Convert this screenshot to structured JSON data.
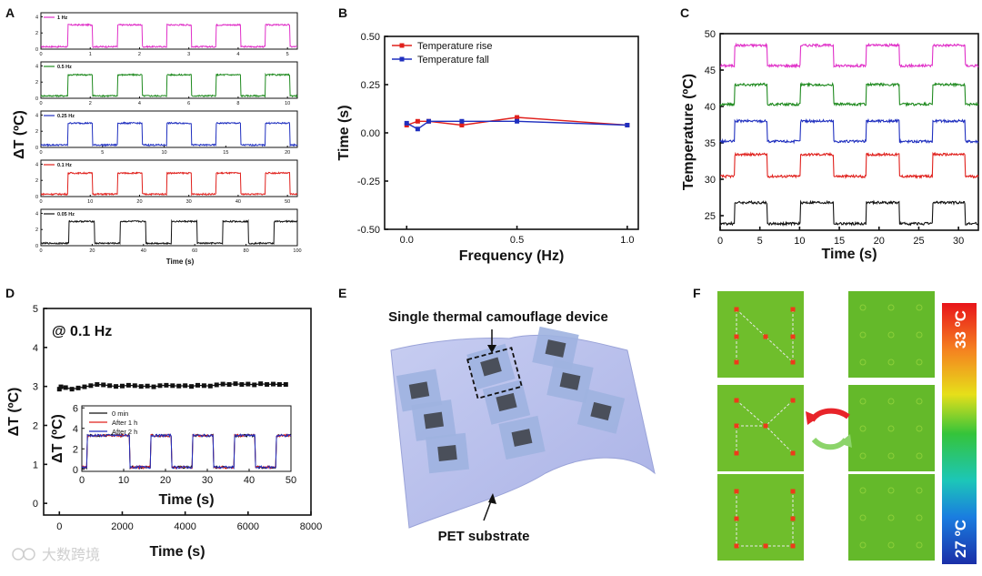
{
  "panel_labels": {
    "a": "A",
    "b": "B",
    "c": "C",
    "d": "D",
    "e": "E",
    "f": "F"
  },
  "watermark": "大数跨境",
  "panel_a": {
    "ylabel": "ΔT (ºC)",
    "xlabel": "Time (s)"
  },
  "panel_e": {
    "device_label": "Single thermal camouflage device",
    "substrate_label": "PET substrate"
  },
  "panel_f": {
    "scale_high": "33 ºC",
    "scale_low": "27 ºC"
  },
  "colors": {
    "magenta": "#e030c8",
    "green": "#1f8a1f",
    "blue": "#1f2fbf",
    "red": "#e0201c",
    "black": "#111111"
  },
  "chart_data": [
    {
      "id": "A",
      "type": "line",
      "ylabel": "ΔT (ºC)",
      "xlabel": "Time (s)",
      "subplots": [
        {
          "label": "1 Hz",
          "color": "#e030c8",
          "xlim": [
            0,
            5.2
          ],
          "xticks": [
            "0",
            "1",
            "2",
            "3",
            "4",
            "5"
          ],
          "yticks": [
            "0",
            "2",
            "4"
          ],
          "ylim": [
            0,
            4.5
          ],
          "period_s": 1,
          "high": 3.0,
          "low": 0.3
        },
        {
          "label": "0.5 Hz",
          "color": "#1f8a1f",
          "xlim": [
            0,
            10.4
          ],
          "xticks": [
            "0",
            "2",
            "4",
            "6",
            "8",
            "10"
          ],
          "yticks": [
            "0",
            "2",
            "4"
          ],
          "ylim": [
            0,
            4.5
          ],
          "period_s": 2,
          "high": 2.9,
          "low": 0.3
        },
        {
          "label": "0.25 Hz",
          "color": "#1f2fbf",
          "xlim": [
            0,
            20.8
          ],
          "xticks": [
            "0",
            "5",
            "10",
            "15",
            "20"
          ],
          "yticks": [
            "0",
            "2",
            "4"
          ],
          "ylim": [
            0,
            4.5
          ],
          "period_s": 4,
          "high": 3.0,
          "low": 0.3
        },
        {
          "label": "0.1 Hz",
          "color": "#e0201c",
          "xlim": [
            0,
            52
          ],
          "xticks": [
            "0",
            "10",
            "20",
            "30",
            "40",
            "50"
          ],
          "yticks": [
            "0",
            "2",
            "4"
          ],
          "ylim": [
            0,
            4.5
          ],
          "period_s": 10,
          "high": 2.9,
          "low": 0.3
        },
        {
          "label": "0.05 Hz",
          "color": "#111111",
          "xlim": [
            0,
            100
          ],
          "xticks": [
            "0",
            "20",
            "40",
            "60",
            "80",
            "100"
          ],
          "yticks": [
            "0",
            "2",
            "4"
          ],
          "ylim": [
            0,
            4.5
          ],
          "period_s": 20,
          "high": 3.0,
          "low": 0.3
        }
      ]
    },
    {
      "id": "B",
      "type": "line",
      "xlabel": "Frequency (Hz)",
      "ylabel": "Time (s)",
      "xlim": [
        -0.1,
        1.05
      ],
      "ylim": [
        -0.5,
        0.5
      ],
      "xticks": [
        {
          "v": 0,
          "t": "0.0"
        },
        {
          "v": 0.5,
          "t": "0.5"
        },
        {
          "v": 1.0,
          "t": "1.0"
        }
      ],
      "yticks": [
        {
          "v": 0.5,
          "t": "0.50"
        },
        {
          "v": 0.25,
          "t": "0.25"
        },
        {
          "v": 0,
          "t": "0.00"
        },
        {
          "v": -0.25,
          "t": "-0.25"
        },
        {
          "v": -0.5,
          "t": "-0.50"
        }
      ],
      "legend_position": "top-left",
      "series": [
        {
          "name": "Temperature rise",
          "color": "#e0201c",
          "x": [
            0.0,
            0.05,
            0.1,
            0.25,
            0.5,
            1.0
          ],
          "y": [
            0.04,
            0.06,
            0.06,
            0.04,
            0.08,
            0.04
          ]
        },
        {
          "name": "Temperature fall",
          "color": "#1f2fbf",
          "x": [
            0.0,
            0.05,
            0.1,
            0.25,
            0.5,
            1.0
          ],
          "y": [
            0.05,
            0.02,
            0.06,
            0.06,
            0.06,
            0.04
          ]
        }
      ]
    },
    {
      "id": "C",
      "type": "line",
      "xlabel": "Time (s)",
      "ylabel": "Temperature (ºC)",
      "xlim": [
        0,
        32.5
      ],
      "ylim": [
        23,
        50
      ],
      "xticks": [
        {
          "v": 0,
          "t": "0"
        },
        {
          "v": 5,
          "t": "5"
        },
        {
          "v": 10,
          "t": "10"
        },
        {
          "v": 15,
          "t": "15"
        },
        {
          "v": 20,
          "t": "20"
        },
        {
          "v": 25,
          "t": "25"
        },
        {
          "v": 30,
          "t": "30"
        }
      ],
      "yticks": [
        {
          "v": 25,
          "t": "25"
        },
        {
          "v": 30,
          "t": "30"
        },
        {
          "v": 35,
          "t": "35"
        },
        {
          "v": 40,
          "t": "40"
        },
        {
          "v": 45,
          "t": "45"
        },
        {
          "v": 50,
          "t": "50"
        }
      ],
      "period_s": 8.3,
      "phase_s": 1.8,
      "series": [
        {
          "color": "#e030c8",
          "low": 45.6,
          "high": 48.4
        },
        {
          "color": "#1f8a1f",
          "low": 40.3,
          "high": 43.0
        },
        {
          "color": "#1f2fbf",
          "low": 35.2,
          "high": 38.0
        },
        {
          "color": "#e0201c",
          "low": 30.4,
          "high": 33.4
        },
        {
          "color": "#111111",
          "low": 23.9,
          "high": 26.8
        }
      ]
    },
    {
      "id": "D",
      "type": "scatter",
      "annotation": "@ 0.1 Hz",
      "xlabel": "Time (s)",
      "ylabel": "ΔT (ºC)",
      "xlim": [
        -500,
        8000
      ],
      "ylim": [
        -0.3,
        5
      ],
      "xticks": [
        {
          "v": 0,
          "t": "0"
        },
        {
          "v": 2000,
          "t": "2000"
        },
        {
          "v": 4000,
          "t": "4000"
        },
        {
          "v": 6000,
          "t": "6000"
        },
        {
          "v": 8000,
          "t": "8000"
        }
      ],
      "yticks": [
        {
          "v": 0,
          "t": "0"
        },
        {
          "v": 1,
          "t": "1"
        },
        {
          "v": 2,
          "t": "2"
        },
        {
          "v": 3,
          "t": "3"
        },
        {
          "v": 4,
          "t": "4"
        },
        {
          "v": 5,
          "t": "5"
        }
      ],
      "series": [
        {
          "color": "#111111",
          "x": [
            0,
            50,
            200,
            400,
            600,
            800,
            1000,
            1200,
            1400,
            1600,
            1800,
            2000,
            2200,
            2400,
            2600,
            2800,
            3000,
            3200,
            3400,
            3600,
            3800,
            4000,
            4200,
            4400,
            4600,
            4800,
            5000,
            5200,
            5400,
            5600,
            5800,
            6000,
            6200,
            6400,
            6600,
            6800,
            7000,
            7200
          ],
          "y": [
            2.93,
            2.99,
            2.97,
            2.93,
            2.96,
            2.99,
            3.02,
            3.05,
            3.04,
            3.02,
            3.0,
            3.01,
            3.03,
            3.02,
            3.0,
            3.01,
            2.99,
            3.02,
            3.03,
            3.02,
            3.01,
            3.02,
            3.0,
            3.03,
            3.02,
            3.01,
            3.04,
            3.06,
            3.05,
            3.07,
            3.05,
            3.06,
            3.04,
            3.07,
            3.05,
            3.06,
            3.05,
            3.05
          ]
        }
      ],
      "inset": {
        "xlabel": "Time (s)",
        "ylabel": "ΔT (ºC)",
        "xlim": [
          0,
          50
        ],
        "ylim": [
          -0.2,
          6.2
        ],
        "xticks": [
          {
            "v": 0,
            "t": "0"
          },
          {
            "v": 10,
            "t": "10"
          },
          {
            "v": 20,
            "t": "20"
          },
          {
            "v": 30,
            "t": "30"
          },
          {
            "v": 40,
            "t": "40"
          },
          {
            "v": 50,
            "t": "50"
          }
        ],
        "yticks": [
          {
            "v": 0,
            "t": "0"
          },
          {
            "v": 2,
            "t": "2"
          },
          {
            "v": 4,
            "t": "4"
          },
          {
            "v": 6,
            "t": "6"
          }
        ],
        "period_s": 10,
        "high": 3.3,
        "low": 0.2,
        "series": [
          {
            "name": "0 min",
            "color": "#111111"
          },
          {
            "name": "After 1 h",
            "color": "#e0201c"
          },
          {
            "name": "After 2 h",
            "color": "#1f2fbf"
          }
        ]
      }
    }
  ]
}
